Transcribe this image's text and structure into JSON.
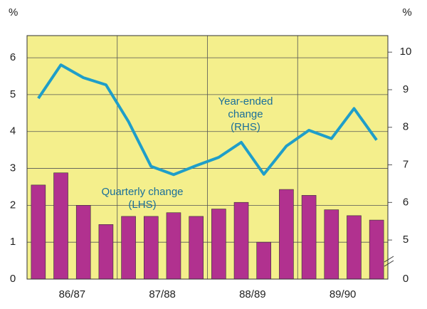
{
  "chart_data": {
    "type": "bar_line",
    "y_unit": "%",
    "y2_unit": "%",
    "categories": [
      null,
      null,
      null,
      null,
      null,
      null,
      null,
      null,
      null,
      null,
      null,
      null,
      null,
      null,
      null,
      null
    ],
    "year_labels": [
      "86/87",
      "87/88",
      "88/89",
      "89/90"
    ],
    "series": [
      {
        "name": "Quarterly change (LHS)",
        "type": "bar",
        "axis": "y",
        "color": "#b1318f",
        "values": [
          2.55,
          2.88,
          2.0,
          1.48,
          1.7,
          1.7,
          1.8,
          1.7,
          1.9,
          2.08,
          1.0,
          2.43,
          2.27,
          1.88,
          1.72,
          1.6
        ]
      },
      {
        "name": "Year-ended change (RHS)",
        "type": "line",
        "axis": "y2",
        "color": "#1f9ec9",
        "values": [
          8.77,
          9.66,
          9.32,
          9.13,
          8.15,
          6.96,
          6.74,
          6.98,
          7.2,
          7.6,
          6.75,
          7.5,
          7.92,
          7.7,
          8.5,
          7.66
        ]
      }
    ],
    "annotations": [
      [
        "Year-ended",
        "change",
        "(RHS)"
      ],
      [
        "Quarterly change",
        "(LHS)"
      ]
    ],
    "ylim": [
      0,
      6.6
    ],
    "yticks": [
      0,
      1,
      2,
      3,
      4,
      5,
      6
    ],
    "y2lim": [
      3.96,
      10.44
    ],
    "y2ticks": [
      5,
      6,
      7,
      8,
      9,
      10
    ],
    "y2_break_label": "0",
    "background": "#f4ef8c",
    "grid": true
  }
}
